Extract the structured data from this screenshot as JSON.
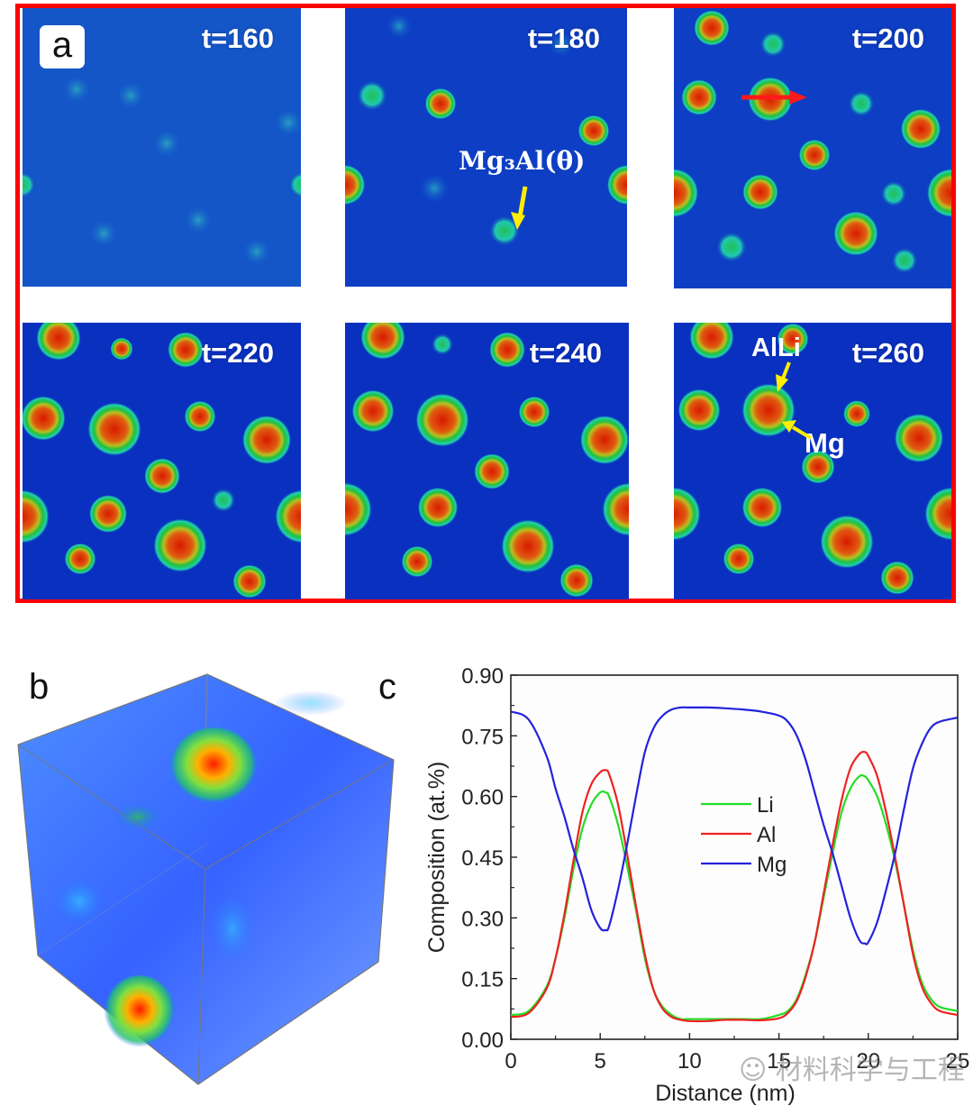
{
  "panel_a": {
    "letter": "a",
    "frames": [
      {
        "label": "t=160"
      },
      {
        "label": "t=180"
      },
      {
        "label": "t=200"
      },
      {
        "label": "t=220"
      },
      {
        "label": "t=240"
      },
      {
        "label": "t=260"
      }
    ],
    "annotations": {
      "mg3al": "Mg₃Al(θ)",
      "alli": "AlLi",
      "mg": "Mg"
    },
    "colors": {
      "frame": "#ff0000",
      "arrow_yellow": "#ffee00",
      "arrow_red": "#ff1a1a"
    }
  },
  "panel_b": {
    "letter": "b"
  },
  "panel_c": {
    "letter": "c"
  },
  "watermark": "材料科学与工程",
  "chart_data": {
    "type": "line",
    "title": "",
    "xlabel": "Distance (nm)",
    "ylabel": "Composition (at.%)",
    "xlim": [
      0,
      25
    ],
    "ylim": [
      0,
      0.9
    ],
    "xticks": [
      "0",
      "5",
      "10",
      "15",
      "20",
      "25"
    ],
    "yticks": [
      "0.00",
      "0.15",
      "0.30",
      "0.45",
      "0.60",
      "0.75",
      "0.90"
    ],
    "legend_position": "center",
    "grid": false,
    "x": [
      0,
      1,
      2,
      2.5,
      3,
      3.5,
      4,
      4.5,
      5,
      5.3,
      5.5,
      6,
      6.5,
      7,
      7.5,
      8,
      8.5,
      9,
      9.5,
      10,
      11,
      12,
      13,
      14,
      15,
      15.5,
      16,
      16.5,
      17,
      17.5,
      18,
      18.5,
      19,
      19.5,
      19.8,
      20,
      20.5,
      21,
      21.5,
      22,
      22.5,
      23,
      23.5,
      24,
      25
    ],
    "series": [
      {
        "name": "Li",
        "color": "#22dd22",
        "values": [
          0.06,
          0.07,
          0.13,
          0.2,
          0.3,
          0.42,
          0.52,
          0.58,
          0.61,
          0.61,
          0.6,
          0.53,
          0.43,
          0.32,
          0.2,
          0.12,
          0.08,
          0.06,
          0.05,
          0.05,
          0.05,
          0.05,
          0.05,
          0.05,
          0.06,
          0.07,
          0.1,
          0.16,
          0.24,
          0.35,
          0.46,
          0.56,
          0.62,
          0.65,
          0.65,
          0.64,
          0.6,
          0.53,
          0.44,
          0.33,
          0.22,
          0.14,
          0.1,
          0.08,
          0.07
        ]
      },
      {
        "name": "Al",
        "color": "#ee2222",
        "values": [
          0.055,
          0.065,
          0.125,
          0.2,
          0.31,
          0.44,
          0.56,
          0.63,
          0.66,
          0.665,
          0.655,
          0.58,
          0.46,
          0.33,
          0.21,
          0.12,
          0.075,
          0.055,
          0.048,
          0.045,
          0.045,
          0.048,
          0.048,
          0.047,
          0.052,
          0.065,
          0.095,
          0.155,
          0.24,
          0.36,
          0.48,
          0.59,
          0.67,
          0.705,
          0.71,
          0.7,
          0.65,
          0.56,
          0.45,
          0.33,
          0.21,
          0.13,
          0.09,
          0.07,
          0.06
        ]
      },
      {
        "name": "Mg",
        "color": "#2222dd",
        "values": [
          0.81,
          0.79,
          0.7,
          0.62,
          0.55,
          0.47,
          0.4,
          0.32,
          0.275,
          0.27,
          0.28,
          0.37,
          0.48,
          0.6,
          0.71,
          0.77,
          0.8,
          0.815,
          0.82,
          0.82,
          0.82,
          0.818,
          0.815,
          0.81,
          0.8,
          0.785,
          0.75,
          0.69,
          0.61,
          0.53,
          0.46,
          0.38,
          0.3,
          0.245,
          0.237,
          0.24,
          0.29,
          0.37,
          0.46,
          0.57,
          0.67,
          0.73,
          0.77,
          0.785,
          0.795
        ]
      }
    ]
  }
}
